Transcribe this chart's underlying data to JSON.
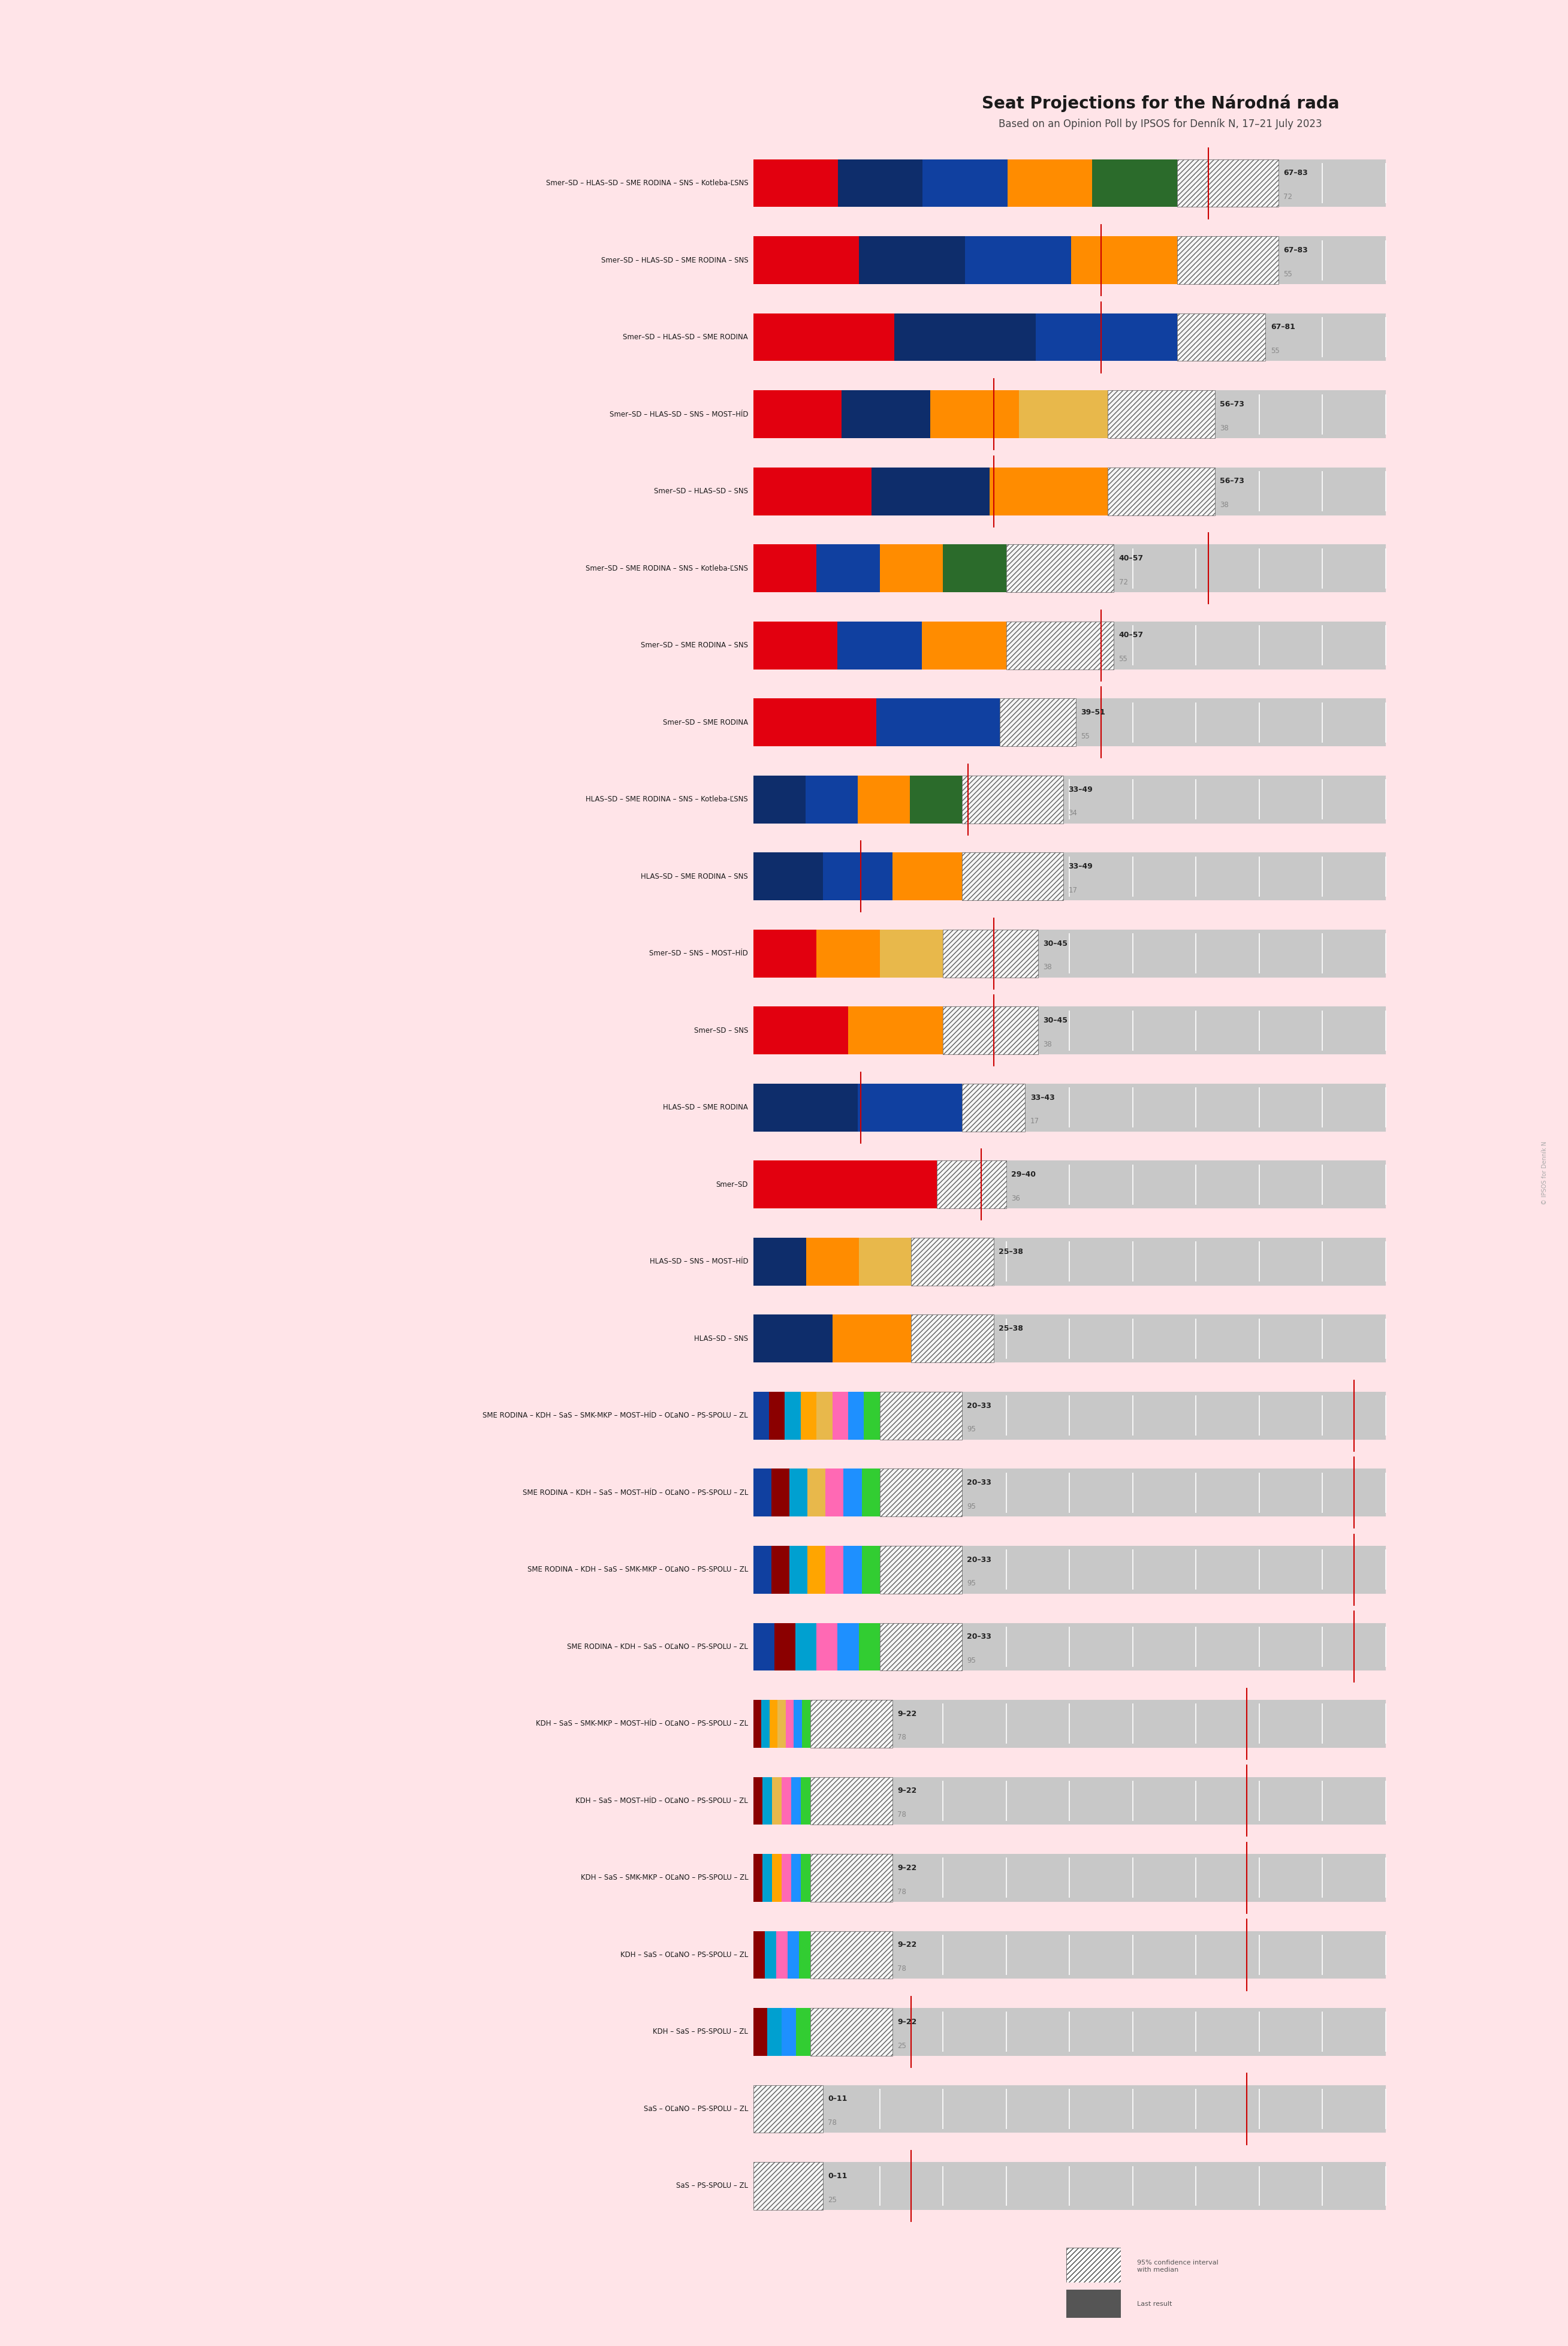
{
  "title": "Seat Projections for the Národná rada",
  "subtitle": "Based on an Opinion Poll by IPSOS for Denník N, 17–21 July 2023",
  "background_color": "#FFE4E8",
  "watermark": "© IPSOS for Denník N",
  "total_seats": 150,
  "x_axis_max": 100,
  "tick_interval": 10,
  "coalitions": [
    {
      "label": "Smer–SD – HLAS–SD – SME RODINA – SNS – Kotleba-ĽSNS",
      "colors": [
        "#E2000F",
        "#0E2D6B",
        "#1040A0",
        "#FF8C00",
        "#2B6B2B"
      ],
      "ci_low": 67,
      "ci_high": 83,
      "median": 72
    },
    {
      "label": "Smer–SD – HLAS–SD – SME RODINA – SNS",
      "colors": [
        "#E2000F",
        "#0E2D6B",
        "#1040A0",
        "#FF8C00"
      ],
      "ci_low": 67,
      "ci_high": 83,
      "median": 55
    },
    {
      "label": "Smer–SD – HLAS–SD – SME RODINA",
      "colors": [
        "#E2000F",
        "#0E2D6B",
        "#1040A0"
      ],
      "ci_low": 67,
      "ci_high": 81,
      "median": 55
    },
    {
      "label": "Smer–SD – HLAS–SD – SNS – MOST–HÍD",
      "colors": [
        "#E2000F",
        "#0E2D6B",
        "#FF8C00",
        "#E8B84B"
      ],
      "ci_low": 56,
      "ci_high": 73,
      "median": 38
    },
    {
      "label": "Smer–SD – HLAS–SD – SNS",
      "colors": [
        "#E2000F",
        "#0E2D6B",
        "#FF8C00"
      ],
      "ci_low": 56,
      "ci_high": 73,
      "median": 38
    },
    {
      "label": "Smer–SD – SME RODINA – SNS – Kotleba-ĽSNS",
      "colors": [
        "#E2000F",
        "#1040A0",
        "#FF8C00",
        "#2B6B2B"
      ],
      "ci_low": 40,
      "ci_high": 57,
      "median": 72
    },
    {
      "label": "Smer–SD – SME RODINA – SNS",
      "colors": [
        "#E2000F",
        "#1040A0",
        "#FF8C00"
      ],
      "ci_low": 40,
      "ci_high": 57,
      "median": 55
    },
    {
      "label": "Smer–SD – SME RODINA",
      "colors": [
        "#E2000F",
        "#1040A0"
      ],
      "ci_low": 39,
      "ci_high": 51,
      "median": 55
    },
    {
      "label": "HLAS–SD – SME RODINA – SNS – Kotleba-ĽSNS",
      "colors": [
        "#0E2D6B",
        "#1040A0",
        "#FF8C00",
        "#2B6B2B"
      ],
      "ci_low": 33,
      "ci_high": 49,
      "median": 34
    },
    {
      "label": "HLAS–SD – SME RODINA – SNS",
      "colors": [
        "#0E2D6B",
        "#1040A0",
        "#FF8C00"
      ],
      "ci_low": 33,
      "ci_high": 49,
      "median": 17
    },
    {
      "label": "Smer–SD – SNS – MOST–HÍD",
      "colors": [
        "#E2000F",
        "#FF8C00",
        "#E8B84B"
      ],
      "ci_low": 30,
      "ci_high": 45,
      "median": 38
    },
    {
      "label": "Smer–SD – SNS",
      "colors": [
        "#E2000F",
        "#FF8C00"
      ],
      "ci_low": 30,
      "ci_high": 45,
      "median": 38
    },
    {
      "label": "HLAS–SD – SME RODINA",
      "colors": [
        "#0E2D6B",
        "#1040A0"
      ],
      "ci_low": 33,
      "ci_high": 43,
      "median": 17
    },
    {
      "label": "Smer–SD",
      "colors": [
        "#E2000F"
      ],
      "ci_low": 29,
      "ci_high": 40,
      "median": 36
    },
    {
      "label": "HLAS–SD – SNS – MOST–HÍD",
      "colors": [
        "#0E2D6B",
        "#FF8C00",
        "#E8B84B"
      ],
      "ci_low": 25,
      "ci_high": 38,
      "median": 0
    },
    {
      "label": "HLAS–SD – SNS",
      "colors": [
        "#0E2D6B",
        "#FF8C00"
      ],
      "ci_low": 25,
      "ci_high": 38,
      "median": 0
    },
    {
      "label": "SME RODINA – KDH – SaS – SMK-MKP – MOST–HÍD – OĽaNO – PS-SPOLU – ZL",
      "colors": [
        "#1040A0",
        "#8B0000",
        "#00A0D0",
        "#FFA500",
        "#E8B84B",
        "#FF69B4",
        "#1E90FF",
        "#32CD32"
      ],
      "ci_low": 20,
      "ci_high": 33,
      "median": 95
    },
    {
      "label": "SME RODINA – KDH – SaS – MOST–HÍD – OĽaNO – PS-SPOLU – ZL",
      "colors": [
        "#1040A0",
        "#8B0000",
        "#00A0D0",
        "#E8B84B",
        "#FF69B4",
        "#1E90FF",
        "#32CD32"
      ],
      "ci_low": 20,
      "ci_high": 33,
      "median": 95
    },
    {
      "label": "SME RODINA – KDH – SaS – SMK-MKP – OĽaNO – PS-SPOLU – ZL",
      "colors": [
        "#1040A0",
        "#8B0000",
        "#00A0D0",
        "#FFA500",
        "#FF69B4",
        "#1E90FF",
        "#32CD32"
      ],
      "ci_low": 20,
      "ci_high": 33,
      "median": 95
    },
    {
      "label": "SME RODINA – KDH – SaS – OĽaNO – PS-SPOLU – ZL",
      "colors": [
        "#1040A0",
        "#8B0000",
        "#00A0D0",
        "#FF69B4",
        "#1E90FF",
        "#32CD32"
      ],
      "ci_low": 20,
      "ci_high": 33,
      "median": 95
    },
    {
      "label": "KDH – SaS – SMK-MKP – MOST–HÍD – OĽaNO – PS-SPOLU – ZL",
      "colors": [
        "#8B0000",
        "#00A0D0",
        "#FFA500",
        "#E8B84B",
        "#FF69B4",
        "#1E90FF",
        "#32CD32"
      ],
      "ci_low": 9,
      "ci_high": 22,
      "median": 78
    },
    {
      "label": "KDH – SaS – MOST–HÍD – OĽaNO – PS-SPOLU – ZL",
      "colors": [
        "#8B0000",
        "#00A0D0",
        "#E8B84B",
        "#FF69B4",
        "#1E90FF",
        "#32CD32"
      ],
      "ci_low": 9,
      "ci_high": 22,
      "median": 78
    },
    {
      "label": "KDH – SaS – SMK-MKP – OĽaNO – PS-SPOLU – ZL",
      "colors": [
        "#8B0000",
        "#00A0D0",
        "#FFA500",
        "#FF69B4",
        "#1E90FF",
        "#32CD32"
      ],
      "ci_low": 9,
      "ci_high": 22,
      "median": 78
    },
    {
      "label": "KDH – SaS – OĽaNO – PS-SPOLU – ZL",
      "colors": [
        "#8B0000",
        "#00A0D0",
        "#FF69B4",
        "#1E90FF",
        "#32CD32"
      ],
      "ci_low": 9,
      "ci_high": 22,
      "median": 78
    },
    {
      "label": "KDH – SaS – PS-SPOLU – ZL",
      "colors": [
        "#8B0000",
        "#00A0D0",
        "#1E90FF",
        "#32CD32"
      ],
      "ci_low": 9,
      "ci_high": 22,
      "median": 25
    },
    {
      "label": "SaS – OĽaNO – PS-SPOLU – ZL",
      "colors": [
        "#00A0D0",
        "#FF69B4",
        "#1E90FF",
        "#32CD32"
      ],
      "ci_low": 0,
      "ci_high": 11,
      "median": 78
    },
    {
      "label": "SaS – PS-SPOLU – ZL",
      "colors": [
        "#00A0D0",
        "#1E90FF",
        "#32CD32"
      ],
      "ci_low": 0,
      "ci_high": 11,
      "median": 25
    }
  ]
}
